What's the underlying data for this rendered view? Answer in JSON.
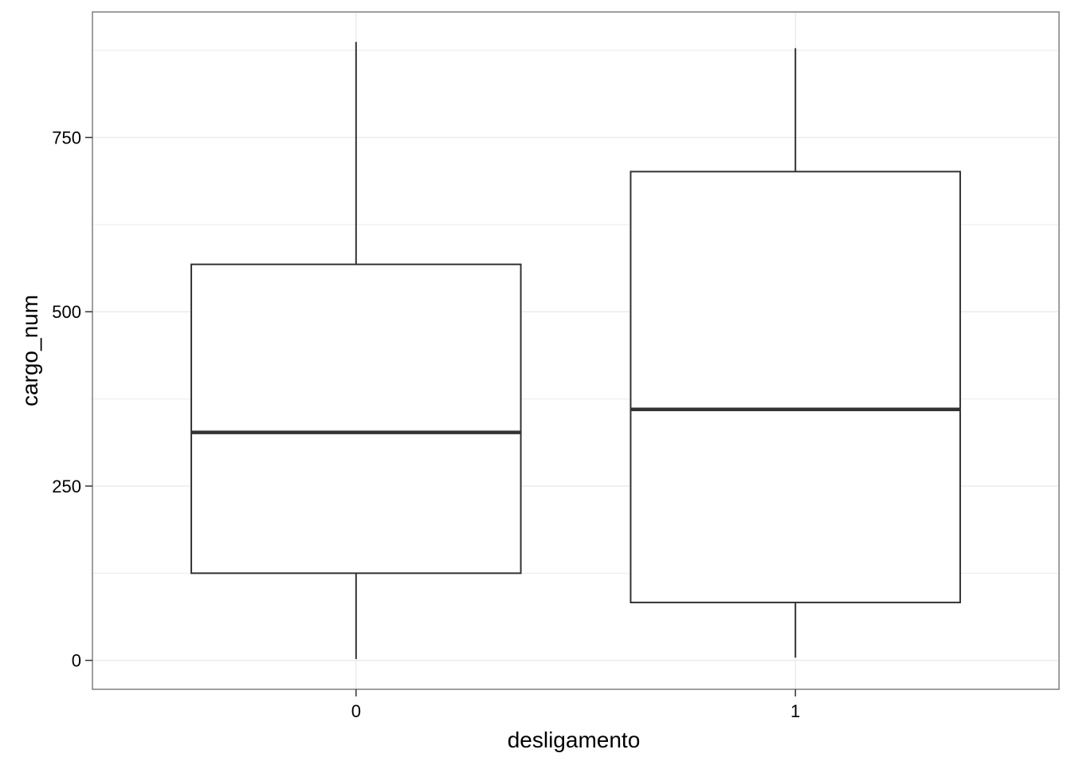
{
  "chart_data": {
    "type": "boxplot",
    "xlabel": "desligamento",
    "ylabel": "cargo_num",
    "categories": [
      "0",
      "1"
    ],
    "boxes": [
      {
        "category": "0",
        "min": 2,
        "q1": 125,
        "median": 327,
        "q3": 568,
        "max": 887
      },
      {
        "category": "1",
        "min": 4,
        "q1": 83,
        "median": 360,
        "q3": 701,
        "max": 878
      }
    ],
    "yticks": [
      0,
      250,
      500,
      750
    ],
    "ylim": [
      -41.5,
      930
    ],
    "grid": true,
    "colors": {
      "box_line": "#333333",
      "grid": "#ebebeb",
      "panel_border": "#7f7f7f"
    }
  }
}
